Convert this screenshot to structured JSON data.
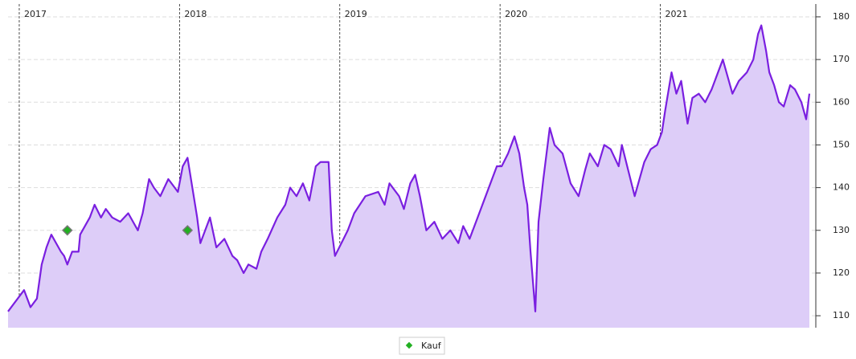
{
  "chart_data": {
    "type": "line",
    "x": [
      2016.93,
      2017.03,
      2017.07,
      2017.11,
      2017.14,
      2017.17,
      2017.2,
      2017.23,
      2017.26,
      2017.28,
      2017.3,
      2017.33,
      2017.37,
      2017.38,
      2017.41,
      2017.44,
      2017.47,
      2017.51,
      2017.54,
      2017.58,
      2017.63,
      2017.68,
      2017.74,
      2017.77,
      2017.81,
      2017.84,
      2017.88,
      2017.93,
      2017.97,
      2017.99,
      2018.02,
      2018.05,
      2018.08,
      2018.11,
      2018.13,
      2018.17,
      2018.19,
      2018.23,
      2018.28,
      2018.33,
      2018.36,
      2018.4,
      2018.43,
      2018.48,
      2018.51,
      2018.55,
      2018.61,
      2018.66,
      2018.69,
      2018.73,
      2018.77,
      2018.81,
      2018.85,
      2018.88,
      2018.93,
      2018.95,
      2018.97,
      2019.01,
      2019.05,
      2019.09,
      2019.16,
      2019.24,
      2019.28,
      2019.31,
      2019.37,
      2019.4,
      2019.44,
      2019.47,
      2019.5,
      2019.54,
      2019.59,
      2019.64,
      2019.69,
      2019.74,
      2019.77,
      2019.81,
      2019.86,
      2019.9,
      2019.94,
      2019.98,
      2020.01,
      2020.05,
      2020.09,
      2020.12,
      2020.15,
      2020.17,
      2020.19,
      2020.22,
      2020.24,
      2020.27,
      2020.31,
      2020.34,
      2020.39,
      2020.44,
      2020.49,
      2020.53,
      2020.56,
      2020.61,
      2020.65,
      2020.69,
      2020.74,
      2020.76,
      2020.8,
      2020.84,
      2020.87,
      2020.9,
      2020.94,
      2020.98,
      2021.01,
      2021.03,
      2021.07,
      2021.1,
      2021.13,
      2021.17,
      2021.2,
      2021.24,
      2021.28,
      2021.32,
      2021.36,
      2021.39,
      2021.42,
      2021.45,
      2021.49,
      2021.54,
      2021.58,
      2021.61,
      2021.63,
      2021.66,
      2021.68,
      2021.71,
      2021.74,
      2021.77,
      2021.81,
      2021.84,
      2021.88,
      2021.91,
      2021.93
    ],
    "values": [
      111,
      116,
      112,
      114,
      122,
      126,
      129,
      127,
      125,
      124,
      122,
      125,
      125,
      129,
      131,
      133,
      136,
      133,
      135,
      133,
      132,
      134,
      130,
      134,
      142,
      140,
      138,
      142,
      140,
      139,
      145,
      147,
      140,
      133,
      127,
      131,
      133,
      126,
      128,
      124,
      123,
      120,
      122,
      121,
      125,
      128,
      133,
      136,
      140,
      138,
      141,
      137,
      145,
      146,
      146,
      130,
      124,
      127,
      130,
      134,
      138,
      139,
      136,
      141,
      138,
      135,
      141,
      143,
      138,
      130,
      132,
      128,
      130,
      127,
      131,
      128,
      133,
      137,
      141,
      145,
      145,
      148,
      152,
      148,
      140,
      136,
      125,
      111,
      132,
      142,
      154,
      150,
      148,
      141,
      138,
      144,
      148,
      145,
      150,
      149,
      145,
      150,
      144,
      138,
      142,
      146,
      149,
      150,
      153,
      158,
      167,
      162,
      165,
      155,
      161,
      162,
      160,
      163,
      167,
      170,
      166,
      162,
      165,
      167,
      170,
      176,
      178,
      172,
      167,
      164,
      160,
      159,
      164,
      163,
      160,
      156,
      162
    ],
    "color": "#7a1fe0",
    "area_color": "#ddcdf8",
    "xlim": [
      2016.93,
      2021.93
    ],
    "xticks": [
      2017,
      2018,
      2019,
      2020,
      2021
    ],
    "ylim": [
      107.2,
      183
    ],
    "yticks": [
      110,
      120,
      130,
      140,
      150,
      160,
      170,
      180
    ],
    "grid": true,
    "markers": {
      "name": "Kauf",
      "x": [
        2017.3,
        2018.05
      ],
      "values": [
        130,
        130
      ],
      "color": "#22b022"
    }
  }
}
